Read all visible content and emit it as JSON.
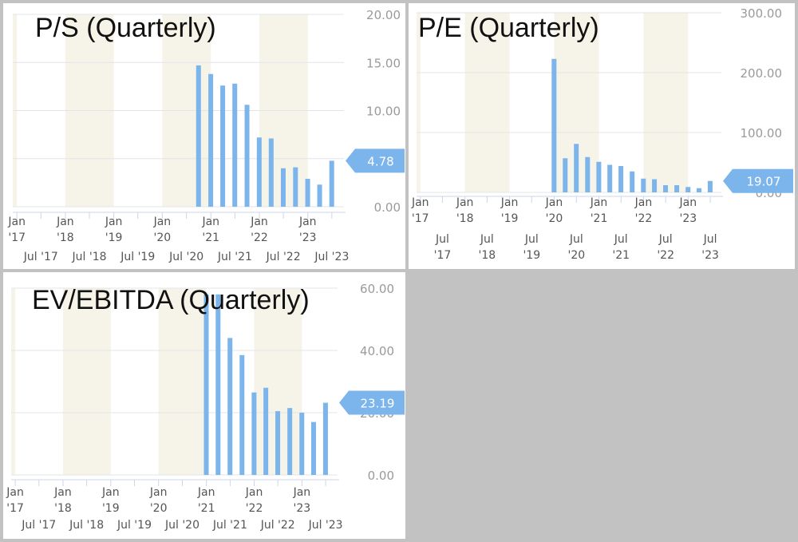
{
  "colors": {
    "bar": "#7cb5ec",
    "band": "#f6f3e8",
    "grid": "#e1e4ea",
    "axis_line": "#ccd6eb",
    "tick_text": "#555555",
    "ylabel_text": "#9a9a9a",
    "flag": "#7cb5ec",
    "flag_text": "#ffffff",
    "background": "#c2c2c2"
  },
  "chart_data": [
    {
      "type": "bar",
      "title": "P/S (Quarterly)",
      "x_range": [
        "2016-12-01",
        "2023-09-30"
      ],
      "ylim": [
        0,
        20
      ],
      "y_ticks": [
        {
          "value": 0,
          "label": "0.00"
        },
        {
          "value": 5,
          "label": ""
        },
        {
          "value": 10,
          "label": "10.00"
        },
        {
          "value": 15,
          "label": "15.00"
        },
        {
          "value": 20,
          "label": "20.00"
        }
      ],
      "shaded_ranges": [
        [
          "2016-12-01",
          "2017-01-01"
        ],
        [
          "2018-01-01",
          "2019-01-01"
        ],
        [
          "2020-01-01",
          "2021-01-01"
        ],
        [
          "2022-01-01",
          "2023-01-01"
        ]
      ],
      "x_labels_top": [
        "Jan\n'17",
        "Jan\n'18",
        "Jan\n'19",
        "Jan\n'20",
        "Jan\n'21",
        "Jan\n'22",
        "Jan\n'23"
      ],
      "x_labels_bottom": [
        "Jul '17",
        "Jul '18",
        "Jul '19",
        "Jul '20",
        "Jul '21",
        "Jul '22",
        "Jul '23"
      ],
      "x": [
        "2020-09-30",
        "2020-12-31",
        "2021-03-31",
        "2021-06-30",
        "2021-09-30",
        "2021-12-31",
        "2022-03-31",
        "2022-06-30",
        "2022-09-30",
        "2022-12-31",
        "2023-03-31",
        "2023-06-30"
      ],
      "values": [
        14.7,
        13.8,
        12.6,
        12.8,
        10.6,
        7.2,
        7.1,
        4.0,
        4.1,
        2.9,
        2.3,
        4.78
      ],
      "current_label": "4.78",
      "current_value": 4.78,
      "grid": true,
      "legend": false
    },
    {
      "type": "bar",
      "title": "P/E (Quarterly)",
      "x_range": [
        "2016-12-01",
        "2023-09-30"
      ],
      "ylim": [
        0,
        300
      ],
      "y_ticks": [
        {
          "value": 0,
          "label": "0.00"
        },
        {
          "value": 100,
          "label": "100.00"
        },
        {
          "value": 200,
          "label": "200.00"
        },
        {
          "value": 300,
          "label": "300.00"
        }
      ],
      "shaded_ranges": [
        [
          "2016-12-01",
          "2017-01-01"
        ],
        [
          "2018-01-01",
          "2019-01-01"
        ],
        [
          "2020-01-01",
          "2021-01-01"
        ],
        [
          "2022-01-01",
          "2023-01-01"
        ]
      ],
      "x_labels_top": [
        "Jan\n'17",
        "Jan\n'18",
        "Jan\n'19",
        "Jan\n'20",
        "Jan\n'21",
        "Jan\n'22",
        "Jan\n'23"
      ],
      "x_labels_bottom": [
        "Jul\n'17",
        "Jul\n'18",
        "Jul\n'19",
        "Jul\n'20",
        "Jul\n'21",
        "Jul\n'22",
        "Jul\n'23"
      ],
      "x": [
        "2019-12-31",
        "2020-03-31",
        "2020-06-30",
        "2020-09-30",
        "2020-12-31",
        "2021-03-31",
        "2021-06-30",
        "2021-09-30",
        "2021-12-31",
        "2022-03-31",
        "2022-06-30",
        "2022-09-30",
        "2022-12-31",
        "2023-03-31",
        "2023-06-30"
      ],
      "values": [
        223,
        57,
        81,
        59,
        51,
        46,
        44,
        35,
        23,
        22,
        12,
        12,
        9,
        7,
        19.07
      ],
      "current_label": "19.07",
      "current_value": 19.07,
      "grid": true,
      "legend": false
    },
    {
      "type": "bar",
      "title": "EV/EBITDA (Quarterly)",
      "x_range": [
        "2016-12-01",
        "2023-09-30"
      ],
      "ylim": [
        0,
        60
      ],
      "y_ticks": [
        {
          "value": 0,
          "label": "0.00"
        },
        {
          "value": 20,
          "label": "20.00"
        },
        {
          "value": 40,
          "label": "40.00"
        },
        {
          "value": 60,
          "label": "60.00"
        }
      ],
      "shaded_ranges": [
        [
          "2016-12-01",
          "2017-01-01"
        ],
        [
          "2018-01-01",
          "2019-01-01"
        ],
        [
          "2020-01-01",
          "2021-01-01"
        ],
        [
          "2022-01-01",
          "2023-01-01"
        ]
      ],
      "x_labels_top": [
        "Jan\n'17",
        "Jan\n'18",
        "Jan\n'19",
        "Jan\n'20",
        "Jan\n'21",
        "Jan\n'22",
        "Jan\n'23"
      ],
      "x_labels_bottom": [
        "Jul '17",
        "Jul '18",
        "Jul '19",
        "Jul '20",
        "Jul '21",
        "Jul '22",
        "Jul '23"
      ],
      "x": [
        "2020-12-31",
        "2021-03-31",
        "2021-06-30",
        "2021-09-30",
        "2021-12-31",
        "2022-03-31",
        "2022-06-30",
        "2022-09-30",
        "2022-12-31",
        "2023-03-31",
        "2023-06-30"
      ],
      "values": [
        58,
        58,
        44,
        38.5,
        26.5,
        28,
        20.5,
        21.5,
        20,
        17,
        23.19
      ],
      "current_label": "23.19",
      "current_value": 23.19,
      "grid": true,
      "legend": false
    }
  ]
}
